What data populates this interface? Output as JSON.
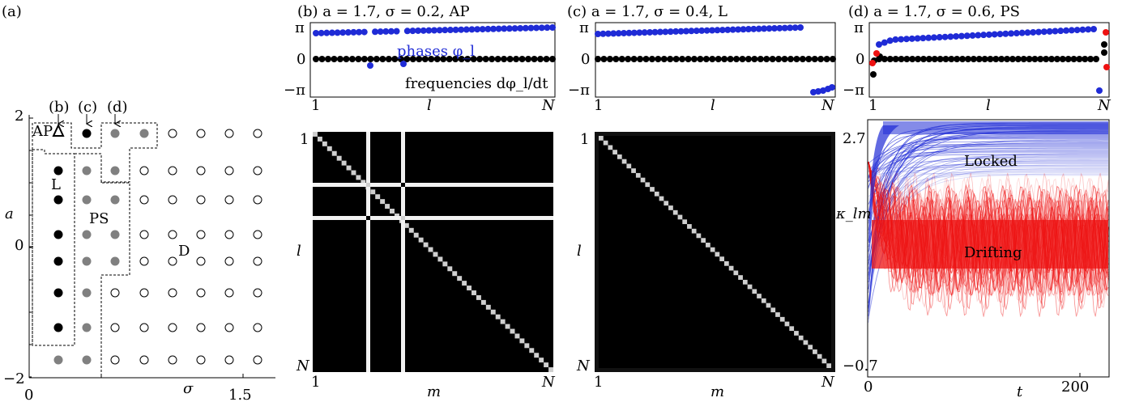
{
  "panel_a": {
    "tag": "(a)",
    "axis_y_label": "a",
    "axis_x_label": "σ",
    "y_ticks": [
      "2",
      "0",
      "−2"
    ],
    "x_ticks": [
      "0",
      "1.5"
    ],
    "arrows": [
      "(b)",
      "(c)",
      "(d)"
    ],
    "regions": {
      "ap": "AP",
      "locked": "L",
      "ps": "PS",
      "drifting": "D"
    }
  },
  "panel_b": {
    "title": "(b)  a = 1.7, σ = 0.2,   AP",
    "phases_label": "phases φ_l",
    "freq_label": "frequencies dφ_l/dt",
    "top_x_start": "1",
    "top_x_label": "l",
    "top_x_end": "N",
    "y_ticks": [
      "π",
      "0",
      "−π"
    ],
    "matrix_y_start": "1",
    "matrix_y_label": "l",
    "matrix_y_end": "N",
    "matrix_x_start": "1",
    "matrix_x_label": "m",
    "matrix_x_end": "N"
  },
  "panel_c": {
    "title": "(c)  a = 1.7, σ = 0.4,   L",
    "top_x_start": "1",
    "top_x_label": "l",
    "top_x_end": "N",
    "y_ticks": [
      "π",
      "0",
      "−π"
    ],
    "matrix_y_start": "1",
    "matrix_y_label": "l",
    "matrix_y_end": "N",
    "matrix_x_start": "1",
    "matrix_x_label": "m",
    "matrix_x_end": "N"
  },
  "panel_d": {
    "title": "(d)  a = 1.7, σ = 0.6,   PS",
    "top_x_start": "1",
    "top_x_label": "l",
    "top_x_end": "N",
    "y_ticks": [
      "π",
      "0",
      "−π"
    ],
    "ts_y_top": "2.7",
    "ts_y_bottom": "−0.7",
    "ts_y_label": "κ_lm",
    "ts_x_start": "0",
    "ts_x_label": "t",
    "ts_x_tick": "200",
    "locked_label": "Locked",
    "drifting_label": "Drifting"
  },
  "colors": {
    "blue": "#1f2bd6",
    "red": "#ee1111",
    "gray": "#808080",
    "black": "#000000"
  }
}
